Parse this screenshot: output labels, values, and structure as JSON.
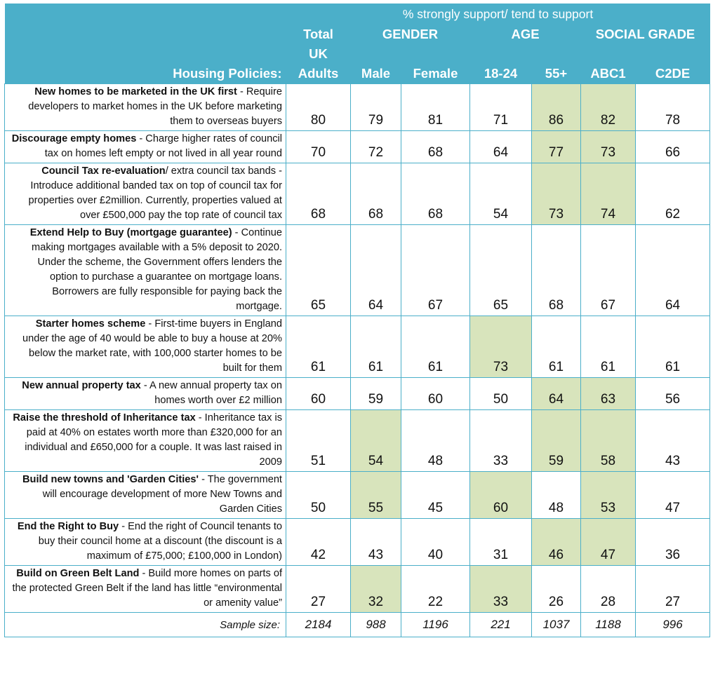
{
  "header": {
    "super_label": "% strongly support/ tend to support",
    "total_line1": "Total",
    "total_line2": "UK",
    "total_line3": "Adults",
    "groups": {
      "gender": "GENDER",
      "age": "AGE",
      "social_grade": "SOCIAL GRADE"
    },
    "row_header": "Housing Policies:",
    "columns": [
      "Male",
      "Female",
      "18-24",
      "55+",
      "ABC1",
      "C2DE"
    ]
  },
  "rows": [
    {
      "title": "New homes to be marketed in the UK first",
      "desc": " - Require developers to market homes in the UK before marketing them to overseas buyers",
      "values": [
        "80",
        "79",
        "81",
        "71",
        "86",
        "82",
        "78"
      ],
      "highlight": [
        false,
        false,
        false,
        false,
        true,
        true,
        false
      ]
    },
    {
      "title": "Discourage empty homes",
      "desc": " - Charge higher rates of council tax on homes left empty or not lived in all year round",
      "values": [
        "70",
        "72",
        "68",
        "64",
        "77",
        "73",
        "66"
      ],
      "highlight": [
        false,
        false,
        false,
        false,
        true,
        true,
        false
      ]
    },
    {
      "title": "Council Tax re-evaluation",
      "desc": "/ extra council tax bands - Introduce additional banded tax on top of council tax for properties over £2million. Currently, properties valued at over £500,000 pay the top rate of council tax",
      "values": [
        "68",
        "68",
        "68",
        "54",
        "73",
        "74",
        "62"
      ],
      "highlight": [
        false,
        false,
        false,
        false,
        true,
        true,
        false
      ]
    },
    {
      "title": "Extend Help to Buy (mortgage guarantee)",
      "desc": " - Continue making mortgages available with a 5% deposit to 2020. Under the scheme, the Government offers lenders the option to purchase a guarantee on mortgage loans. Borrowers are fully responsible for paying back the mortgage.",
      "values": [
        "65",
        "64",
        "67",
        "65",
        "68",
        "67",
        "64"
      ],
      "highlight": [
        false,
        false,
        false,
        false,
        false,
        false,
        false
      ]
    },
    {
      "title": "Starter homes scheme",
      "desc": " - First-time buyers in England under the age of 40 would be able to buy a house at 20% below the market rate, with 100,000 starter homes to be built for them",
      "values": [
        "61",
        "61",
        "61",
        "73",
        "61",
        "61",
        "61"
      ],
      "highlight": [
        false,
        false,
        false,
        true,
        false,
        false,
        false
      ]
    },
    {
      "title": "New annual property tax",
      "desc": " - A new annual property tax on homes worth over £2 million",
      "values": [
        "60",
        "59",
        "60",
        "50",
        "64",
        "63",
        "56"
      ],
      "highlight": [
        false,
        false,
        false,
        false,
        true,
        true,
        false
      ]
    },
    {
      "title": "Raise the threshold of Inheritance tax",
      "desc": " - Inheritance tax is paid at 40% on estates worth more than £320,000 for an individual and £650,000 for a couple. It was last raised in 2009",
      "values": [
        "51",
        "54",
        "48",
        "33",
        "59",
        "58",
        "43"
      ],
      "highlight": [
        false,
        true,
        false,
        false,
        true,
        true,
        false
      ]
    },
    {
      "title": "Build new towns and 'Garden Cities'",
      "desc": " - The government will encourage development of more New Towns and Garden Cities",
      "values": [
        "50",
        "55",
        "45",
        "60",
        "48",
        "53",
        "47"
      ],
      "highlight": [
        false,
        true,
        false,
        true,
        false,
        true,
        false
      ]
    },
    {
      "title": "End the Right to Buy",
      "desc": " - End the right of Council tenants to buy their council home at a discount (the discount is a maximum of £75,000; £100,000 in London)",
      "values": [
        "42",
        "43",
        "40",
        "31",
        "46",
        "47",
        "36"
      ],
      "highlight": [
        false,
        false,
        false,
        false,
        true,
        true,
        false
      ]
    },
    {
      "title": "Build on Green Belt Land",
      "desc": " - Build more homes on parts of the protected Green Belt if the land has little “environmental or amenity value”",
      "values": [
        "27",
        "32",
        "22",
        "33",
        "26",
        "28",
        "27"
      ],
      "highlight": [
        false,
        true,
        false,
        true,
        false,
        false,
        false
      ]
    }
  ],
  "sample": {
    "label": "Sample size:",
    "values": [
      "2184",
      "988",
      "1196",
      "221",
      "1037",
      "1188",
      "996"
    ]
  },
  "colors": {
    "header_bg": "#4bafc9",
    "highlight": "#d8e4bc",
    "border": "#4bafc9"
  }
}
